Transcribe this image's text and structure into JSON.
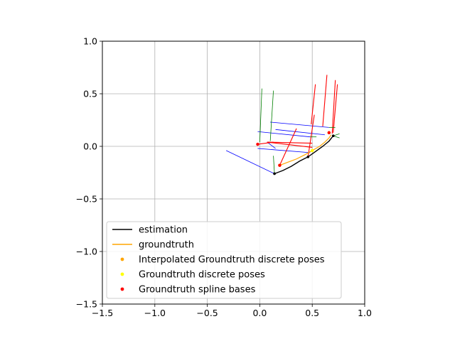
{
  "chart_data": {
    "type": "line",
    "xlim": [
      -1.5,
      1.0
    ],
    "ylim": [
      -1.5,
      1.0
    ],
    "xticks": [
      -1.5,
      -1.0,
      -0.5,
      0.0,
      0.5,
      1.0
    ],
    "yticks": [
      -1.5,
      -1.0,
      -0.5,
      0.0,
      0.5,
      1.0
    ],
    "xtick_labels": [
      "−1.5",
      "−1.0",
      "−0.5",
      "0.0",
      "0.5",
      "1.0"
    ],
    "ytick_labels": [
      "−1.5",
      "−1.0",
      "−0.5",
      "0.0",
      "0.5",
      "1.0"
    ],
    "grid": true,
    "legend_position": "lower-left",
    "series": [
      {
        "name": "estimation",
        "kind": "line",
        "color": "#000000",
        "x": [
          0.14,
          0.22,
          0.3,
          0.38,
          0.46,
          0.53,
          0.6,
          0.66,
          0.7
        ],
        "y": [
          -0.26,
          -0.23,
          -0.19,
          -0.14,
          -0.1,
          -0.05,
          0.0,
          0.05,
          0.1
        ]
      },
      {
        "name": "groundtruth",
        "kind": "line",
        "color": "#ffa500",
        "x": [
          0.19,
          0.27,
          0.35,
          0.43,
          0.5,
          0.57,
          0.62,
          0.66,
          0.68
        ],
        "y": [
          -0.18,
          -0.15,
          -0.12,
          -0.08,
          -0.04,
          0.0,
          0.04,
          0.08,
          0.11
        ]
      },
      {
        "name": "Interpolated Groundtruth discrete poses",
        "kind": "scatter",
        "color": "#ffa500",
        "x": [
          0.19,
          0.5,
          0.66
        ],
        "y": [
          -0.18,
          -0.04,
          0.13
        ]
      },
      {
        "name": "Groundtruth discrete poses",
        "kind": "scatter",
        "color": "#ffff00",
        "x": [
          0.19,
          0.5,
          0.66
        ],
        "y": [
          -0.18,
          -0.04,
          0.13
        ]
      },
      {
        "name": "Groundtruth spline bases",
        "kind": "scatter",
        "color": "#ff0000",
        "x": [
          -0.02,
          0.19,
          0.66
        ],
        "y": [
          0.02,
          -0.18,
          0.13
        ]
      }
    ],
    "estimation_markers": {
      "color": "#000000",
      "x": [
        0.14,
        0.46,
        0.7
      ],
      "y": [
        -0.26,
        -0.1,
        0.1
      ]
    },
    "pose_axes": [
      {
        "color": "#0000ff",
        "x1": 0.1,
        "y1": 0.23,
        "x2": 0.66,
        "y2": 0.18
      },
      {
        "color": "#0000ff",
        "x1": 0.15,
        "y1": 0.16,
        "x2": 0.62,
        "y2": 0.11
      },
      {
        "color": "#0000ff",
        "x1": -0.02,
        "y1": 0.14,
        "x2": 0.48,
        "y2": 0.09
      },
      {
        "color": "#0000ff",
        "x1": -0.02,
        "y1": -0.02,
        "x2": 0.48,
        "y2": -0.06
      },
      {
        "color": "#0000ff",
        "x1": 0.14,
        "y1": -0.26,
        "x2": -0.32,
        "y2": -0.04
      },
      {
        "color": "#0000ff",
        "x1": 0.07,
        "y1": 0.04,
        "x2": 0.15,
        "y2": -0.02
      },
      {
        "color": "#ff0000",
        "x1": 0.6,
        "y1": 0.19,
        "x2": 0.64,
        "y2": 0.68
      },
      {
        "color": "#ff0000",
        "x1": 0.49,
        "y1": 0.21,
        "x2": 0.53,
        "y2": 0.59
      },
      {
        "color": "#ff0000",
        "x1": 0.7,
        "y1": 0.13,
        "x2": 0.74,
        "y2": 0.59
      },
      {
        "color": "#ff0000",
        "x1": 0.69,
        "y1": 0.12,
        "x2": 0.72,
        "y2": 0.63
      },
      {
        "color": "#ff0000",
        "x1": 0.19,
        "y1": -0.18,
        "x2": 0.35,
        "y2": 0.17
      },
      {
        "color": "#ff0000",
        "x1": 0.46,
        "y1": -0.1,
        "x2": 0.52,
        "y2": 0.3
      },
      {
        "color": "#ff0000",
        "x1": 0.07,
        "y1": 0.04,
        "x2": 0.5,
        "y2": -0.01
      },
      {
        "color": "#ff0000",
        "x1": 0.07,
        "y1": 0.04,
        "x2": 0.5,
        "y2": 0.03
      },
      {
        "color": "#ff0000",
        "x1": -0.02,
        "y1": 0.02,
        "x2": 0.13,
        "y2": 0.04
      },
      {
        "color": "#008000",
        "x1": 0.0,
        "y1": 0.04,
        "x2": 0.02,
        "y2": 0.55
      },
      {
        "color": "#008000",
        "x1": 0.1,
        "y1": 0.05,
        "x2": 0.13,
        "y2": 0.53
      },
      {
        "color": "#008000",
        "x1": 0.14,
        "y1": -0.26,
        "x2": 0.13,
        "y2": -0.09
      },
      {
        "color": "#008000",
        "x1": 0.48,
        "y1": 0.09,
        "x2": 0.54,
        "y2": 0.09
      },
      {
        "color": "#008000",
        "x1": 0.66,
        "y1": 0.18,
        "x2": 0.72,
        "y2": 0.18
      },
      {
        "color": "#008000",
        "x1": 0.7,
        "y1": 0.1,
        "x2": 0.76,
        "y2": 0.12
      },
      {
        "color": "#008000",
        "x1": 0.7,
        "y1": 0.1,
        "x2": 0.76,
        "y2": 0.08
      }
    ]
  }
}
